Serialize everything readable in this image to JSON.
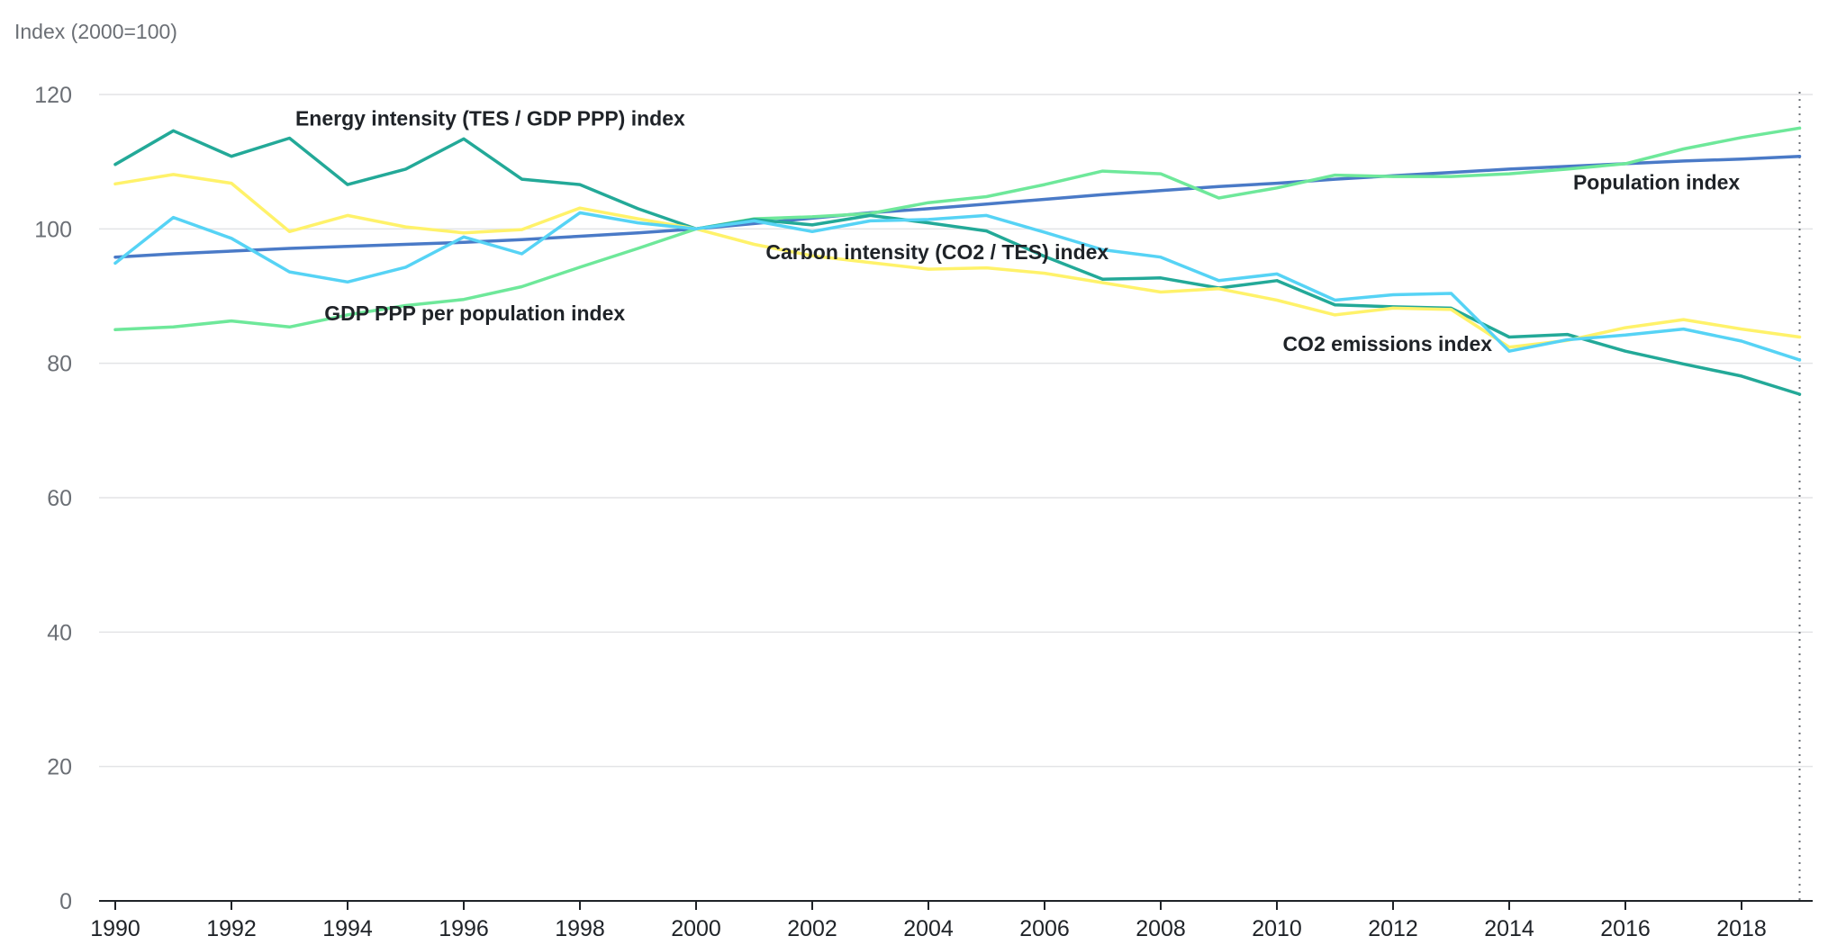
{
  "chart_data": {
    "type": "line",
    "ylabel": "Index (2000=100)",
    "xlabel": "",
    "ylim": [
      0,
      120
    ],
    "xlim": [
      1990,
      2019
    ],
    "grid": true,
    "yticks": [
      0,
      20,
      40,
      60,
      80,
      100,
      120
    ],
    "xticks": [
      1990,
      1992,
      1994,
      1996,
      1998,
      2000,
      2002,
      2004,
      2006,
      2008,
      2010,
      2012,
      2014,
      2016,
      2018
    ],
    "x": [
      1990,
      1991,
      1992,
      1993,
      1994,
      1995,
      1996,
      1997,
      1998,
      1999,
      2000,
      2001,
      2002,
      2003,
      2004,
      2005,
      2006,
      2007,
      2008,
      2009,
      2010,
      2011,
      2012,
      2013,
      2014,
      2015,
      2016,
      2017,
      2018,
      2019
    ],
    "series": [
      {
        "name": "Population index",
        "color": "#4a7ac7",
        "values": [
          95.8,
          96.3,
          96.7,
          97.1,
          97.4,
          97.7,
          98.0,
          98.4,
          98.9,
          99.4,
          100.0,
          100.8,
          101.6,
          102.4,
          103.0,
          103.7,
          104.4,
          105.1,
          105.7,
          106.3,
          106.8,
          107.4,
          107.9,
          108.4,
          108.9,
          109.3,
          109.7,
          110.1,
          110.4,
          110.8
        ]
      },
      {
        "name": "GDP PPP per population index",
        "color": "#6ee89a",
        "values": [
          85.0,
          85.4,
          86.3,
          85.4,
          87.2,
          88.6,
          89.5,
          91.4,
          94.3,
          97.1,
          100.0,
          101.5,
          101.8,
          102.3,
          103.9,
          104.8,
          106.6,
          108.6,
          108.2,
          104.6,
          106.1,
          108.0,
          107.8,
          107.8,
          108.2,
          108.9,
          109.7,
          111.9,
          113.6,
          115.0
        ]
      },
      {
        "name": "Energy intensity (TES / GDP PPP) index",
        "color": "#23a998",
        "values": [
          109.6,
          114.6,
          110.8,
          113.5,
          106.6,
          108.9,
          113.4,
          107.4,
          106.6,
          103.0,
          100.0,
          101.4,
          100.6,
          102.0,
          100.9,
          99.7,
          95.9,
          92.5,
          92.7,
          91.2,
          92.3,
          88.7,
          88.4,
          88.2,
          83.9,
          84.3,
          81.8,
          79.9,
          78.1,
          75.4
        ]
      },
      {
        "name": "Carbon intensity (CO2 / TES) index",
        "color": "#fff26a",
        "values": [
          106.7,
          108.1,
          106.8,
          99.6,
          102.0,
          100.3,
          99.4,
          99.9,
          103.1,
          101.5,
          100.0,
          97.7,
          96.0,
          95.0,
          94.0,
          94.2,
          93.4,
          92.0,
          90.6,
          91.1,
          89.4,
          87.2,
          88.2,
          88.0,
          82.4,
          83.4,
          85.3,
          86.5,
          85.1,
          83.9
        ]
      },
      {
        "name": "CO2 emissions index",
        "color": "#56d3f5",
        "values": [
          94.9,
          101.7,
          98.6,
          93.6,
          92.1,
          94.3,
          98.8,
          96.3,
          102.4,
          100.9,
          100.0,
          101.2,
          99.6,
          101.2,
          101.4,
          102.0,
          99.5,
          96.9,
          95.8,
          92.3,
          93.3,
          89.4,
          90.2,
          90.4,
          81.8,
          83.5,
          84.2,
          85.1,
          83.3,
          80.5
        ]
      }
    ],
    "annotations": [
      {
        "text": "Energy intensity (TES / GDP PPP) index",
        "x": 1993.1,
        "y": 115.4
      },
      {
        "text": "Population index",
        "x": 2015.1,
        "y": 105.9
      },
      {
        "text": "Carbon intensity (CO2 / TES) index",
        "x": 2001.2,
        "y": 95.5
      },
      {
        "text": "GDP PPP per population index",
        "x": 1993.6,
        "y": 86.4
      },
      {
        "text": "CO2 emissions index",
        "x": 2010.1,
        "y": 81.8
      }
    ],
    "marker_year": 2019
  }
}
